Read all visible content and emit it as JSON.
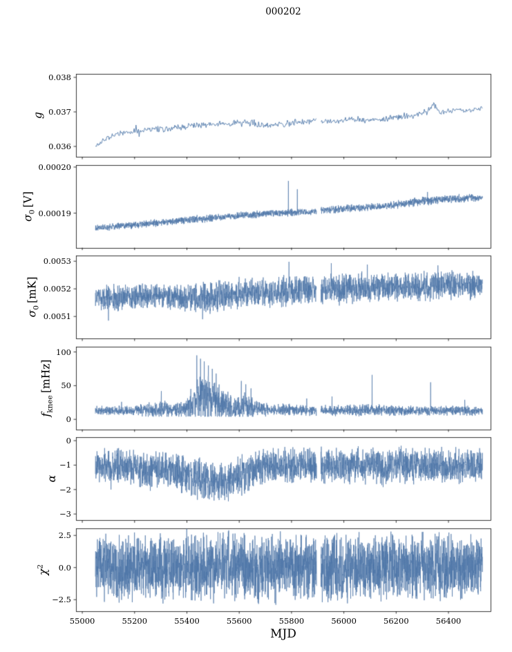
{
  "chart_data": {
    "type": "line",
    "title": "000202",
    "xlabel": "MJD",
    "x_range": [
      54976,
      56561
    ],
    "data_x_range": [
      55050,
      56530
    ],
    "x_ticks": [
      {
        "v": 55000,
        "label": "55000"
      },
      {
        "v": 55200,
        "label": "55200"
      },
      {
        "v": 55400,
        "label": "55400"
      },
      {
        "v": 55600,
        "label": "55600"
      },
      {
        "v": 55800,
        "label": "55800"
      },
      {
        "v": 56000,
        "label": "56000"
      },
      {
        "v": 56200,
        "label": "56200"
      },
      {
        "v": 56400,
        "label": "56400"
      }
    ],
    "gap_x": [
      55896,
      55912
    ],
    "line_color": "#4d76a8",
    "axis_color": "#000000",
    "background": "#ffffff",
    "seed": 20,
    "panels": [
      {
        "id": "g",
        "ylabel": {
          "main": "g",
          "sub": "",
          "sup": "",
          "unit": ""
        },
        "ylim": [
          0.0357,
          0.0381
        ],
        "yticks": [
          {
            "v": 0.038,
            "label": "0.038"
          },
          {
            "v": 0.037,
            "label": "0.037"
          },
          {
            "v": 0.036,
            "label": "0.036"
          }
        ],
        "n_samples": 620,
        "line_width": 0.9,
        "anchors": [
          [
            55050,
            0.036,
            3e-05
          ],
          [
            55090,
            0.03623,
            4e-05
          ],
          [
            55160,
            0.03641,
            5e-05
          ],
          [
            55240,
            0.03647,
            5e-05
          ],
          [
            55320,
            0.0365,
            6e-05
          ],
          [
            55400,
            0.03659,
            5e-05
          ],
          [
            55480,
            0.03664,
            5e-05
          ],
          [
            55560,
            0.03666,
            5e-05
          ],
          [
            55640,
            0.03669,
            6e-05
          ],
          [
            55700,
            0.03661,
            5e-05
          ],
          [
            55770,
            0.03666,
            6e-05
          ],
          [
            55840,
            0.0367,
            5e-05
          ],
          [
            55900,
            0.03676,
            5e-05
          ],
          [
            55960,
            0.03672,
            5e-05
          ],
          [
            56030,
            0.0368,
            5e-05
          ],
          [
            56100,
            0.03675,
            5e-05
          ],
          [
            56180,
            0.03682,
            5e-05
          ],
          [
            56260,
            0.0369,
            6e-05
          ],
          [
            56320,
            0.03704,
            7e-05
          ],
          [
            56340,
            0.0372,
            6e-05
          ],
          [
            56370,
            0.037,
            5e-05
          ],
          [
            56420,
            0.03706,
            5e-05
          ],
          [
            56470,
            0.03702,
            4e-05
          ],
          [
            56530,
            0.0371,
            4e-05
          ]
        ],
        "spikes": [
          [
            55205,
            0.03662
          ],
          [
            55218,
            0.03628
          ],
          [
            56345,
            0.03724
          ]
        ]
      },
      {
        "id": "sigma0_V",
        "ylabel": {
          "main": "σ",
          "sub": "0",
          "sup": "",
          "unit": "[V]"
        },
        "ylim": [
          0.0001825,
          0.0002005
        ],
        "yticks": [
          {
            "v": 0.0002,
            "label": "0.00020"
          },
          {
            "v": 0.00019,
            "label": "0.00019"
          }
        ],
        "n_samples": 2600,
        "line_width": 0.7,
        "anchors": [
          [
            55050,
            0.0001867,
            4e-07
          ],
          [
            55150,
            0.0001872,
            4e-07
          ],
          [
            55250,
            0.0001877,
            5e-07
          ],
          [
            55330,
            0.0001881,
            4e-07
          ],
          [
            55420,
            0.0001886,
            5e-07
          ],
          [
            55500,
            0.000189,
            5e-07
          ],
          [
            55570,
            0.0001893,
            4e-07
          ],
          [
            55650,
            0.0001897,
            5e-07
          ],
          [
            55730,
            0.00019,
            4e-07
          ],
          [
            55800,
            0.0001901,
            5e-07
          ],
          [
            55870,
            0.0001902,
            4e-07
          ],
          [
            55900,
            0.0001906,
            4e-07
          ],
          [
            55980,
            0.0001909,
            5e-07
          ],
          [
            56060,
            0.0001912,
            5e-07
          ],
          [
            56140,
            0.0001914,
            4e-07
          ],
          [
            56220,
            0.000192,
            5e-07
          ],
          [
            56300,
            0.0001926,
            6e-07
          ],
          [
            56380,
            0.000193,
            5e-07
          ],
          [
            56450,
            0.0001932,
            5e-07
          ],
          [
            56530,
            0.0001934,
            4e-07
          ]
        ],
        "spikes": [
          [
            55788,
            0.000197
          ],
          [
            55822,
            0.0001952
          ],
          [
            56320,
            0.0001946
          ]
        ]
      },
      {
        "id": "sigma0_mK",
        "ylabel": {
          "main": "σ",
          "sub": "0",
          "sup": "",
          "unit": "[mK]"
        },
        "ylim": [
          0.00502,
          0.00532
        ],
        "yticks": [
          {
            "v": 0.0053,
            "label": "0.0053"
          },
          {
            "v": 0.0052,
            "label": "0.0052"
          },
          {
            "v": 0.0051,
            "label": "0.0051"
          }
        ],
        "n_samples": 2600,
        "line_width": 0.7,
        "anchors": [
          [
            55050,
            0.00517,
            2.5e-05
          ],
          [
            55120,
            0.005165,
            3e-05
          ],
          [
            55200,
            0.005172,
            2.5e-05
          ],
          [
            55280,
            0.005175,
            2.5e-05
          ],
          [
            55360,
            0.00517,
            2.8e-05
          ],
          [
            55440,
            0.005168,
            3e-05
          ],
          [
            55520,
            0.005172,
            3.2e-05
          ],
          [
            55600,
            0.00518,
            3.2e-05
          ],
          [
            55680,
            0.005185,
            2.8e-05
          ],
          [
            55760,
            0.00519,
            3.2e-05
          ],
          [
            55840,
            0.005195,
            3e-05
          ],
          [
            55920,
            0.005198,
            3e-05
          ],
          [
            56000,
            0.005202,
            3.2e-05
          ],
          [
            56080,
            0.005205,
            3e-05
          ],
          [
            56160,
            0.005206,
            3e-05
          ],
          [
            56240,
            0.005208,
            3e-05
          ],
          [
            56320,
            0.00521,
            3e-05
          ],
          [
            56400,
            0.005213,
            3e-05
          ],
          [
            56530,
            0.005215,
            2.8e-05
          ]
        ],
        "spikes": [
          [
            55100,
            0.005085
          ],
          [
            55460,
            0.00509
          ],
          [
            55790,
            0.005298
          ],
          [
            55952,
            0.005293
          ],
          [
            56090,
            0.005288
          ],
          [
            56360,
            0.005285
          ]
        ]
      },
      {
        "id": "fknee",
        "ylabel": {
          "main": "f",
          "sub": "knee",
          "sup": "",
          "unit": "[mHz]"
        },
        "ylim": [
          -15,
          108
        ],
        "yticks": [
          {
            "v": 100,
            "label": "100"
          },
          {
            "v": 50,
            "label": "50"
          },
          {
            "v": 0,
            "label": "0"
          }
        ],
        "n_samples": 2600,
        "line_width": 0.7,
        "clip_min": 4,
        "anchors": [
          [
            55050,
            13,
            4
          ],
          [
            55200,
            13,
            4
          ],
          [
            55280,
            15,
            7
          ],
          [
            55310,
            17,
            9
          ],
          [
            55340,
            14,
            5
          ],
          [
            55390,
            16,
            7
          ],
          [
            55420,
            24,
            14
          ],
          [
            55440,
            30,
            20
          ],
          [
            55470,
            32,
            22
          ],
          [
            55500,
            28,
            18
          ],
          [
            55530,
            24,
            14
          ],
          [
            55560,
            20,
            11
          ],
          [
            55590,
            18,
            9
          ],
          [
            55615,
            22,
            13
          ],
          [
            55640,
            19,
            10
          ],
          [
            55670,
            16,
            7
          ],
          [
            55720,
            14,
            5
          ],
          [
            55800,
            14,
            5
          ],
          [
            55900,
            13,
            4
          ],
          [
            56000,
            13,
            5
          ],
          [
            56100,
            14,
            5
          ],
          [
            56200,
            13,
            4
          ],
          [
            56300,
            13,
            4
          ],
          [
            56400,
            13,
            4
          ],
          [
            56530,
            13,
            4
          ]
        ],
        "spikes": [
          [
            55150,
            26
          ],
          [
            55302,
            42
          ],
          [
            55438,
            95
          ],
          [
            55452,
            90
          ],
          [
            55466,
            86
          ],
          [
            55482,
            80
          ],
          [
            55497,
            75
          ],
          [
            55512,
            68
          ],
          [
            55608,
            57
          ],
          [
            55625,
            52
          ],
          [
            55645,
            46
          ],
          [
            55858,
            31
          ],
          [
            55955,
            34
          ],
          [
            56108,
            66
          ],
          [
            56332,
            55
          ],
          [
            56462,
            29
          ]
        ]
      },
      {
        "id": "alpha",
        "ylabel": {
          "main": "α",
          "sub": "",
          "sup": "",
          "unit": ""
        },
        "ylim": [
          -3.26,
          0.13
        ],
        "yticks": [
          {
            "v": 0,
            "label": "0"
          },
          {
            "v": -1,
            "label": "−1"
          },
          {
            "v": -2,
            "label": "−2"
          },
          {
            "v": -3,
            "label": "−3"
          }
        ],
        "n_samples": 2600,
        "line_width": 0.7,
        "anchors": [
          [
            55050,
            -1.05,
            0.4
          ],
          [
            55150,
            -1.05,
            0.42
          ],
          [
            55250,
            -1.1,
            0.45
          ],
          [
            55320,
            -1.22,
            0.45
          ],
          [
            55380,
            -1.35,
            0.45
          ],
          [
            55440,
            -1.55,
            0.48
          ],
          [
            55490,
            -1.7,
            0.48
          ],
          [
            55540,
            -1.72,
            0.48
          ],
          [
            55580,
            -1.6,
            0.48
          ],
          [
            55620,
            -1.42,
            0.48
          ],
          [
            55660,
            -1.2,
            0.45
          ],
          [
            55720,
            -1.08,
            0.42
          ],
          [
            55800,
            -1.02,
            0.42
          ],
          [
            55900,
            -1.02,
            0.42
          ],
          [
            56000,
            -1.05,
            0.42
          ],
          [
            56100,
            -1.02,
            0.42
          ],
          [
            56200,
            -1.03,
            0.42
          ],
          [
            56300,
            -1.0,
            0.42
          ],
          [
            56400,
            -1.02,
            0.4
          ],
          [
            56530,
            -1.0,
            0.4
          ]
        ],
        "spikes": [
          [
            55110,
            -2.0
          ],
          [
            55260,
            -2.05
          ],
          [
            55520,
            -2.35
          ],
          [
            56150,
            -1.9
          ]
        ]
      },
      {
        "id": "chi2",
        "ylabel": {
          "main": "χ",
          "sub": "",
          "sup": "2",
          "unit": ""
        },
        "ylim": [
          -3.4,
          3.05
        ],
        "yticks": [
          {
            "v": 2.5,
            "label": "2.5"
          },
          {
            "v": 0,
            "label": "0.0"
          },
          {
            "v": -2.5,
            "label": "−2.5"
          }
        ],
        "n_samples": 3000,
        "line_width": 0.7,
        "anchors": [
          [
            55050,
            0.0,
            1.45
          ],
          [
            55400,
            0.05,
            1.5
          ],
          [
            55700,
            0.0,
            1.45
          ],
          [
            56000,
            0.0,
            1.45
          ],
          [
            56300,
            0.0,
            1.45
          ],
          [
            56530,
            0.0,
            1.4
          ]
        ],
        "spikes": [
          [
            55560,
            2.9
          ],
          [
            55740,
            -2.9
          ],
          [
            56180,
            2.8
          ]
        ]
      }
    ]
  }
}
